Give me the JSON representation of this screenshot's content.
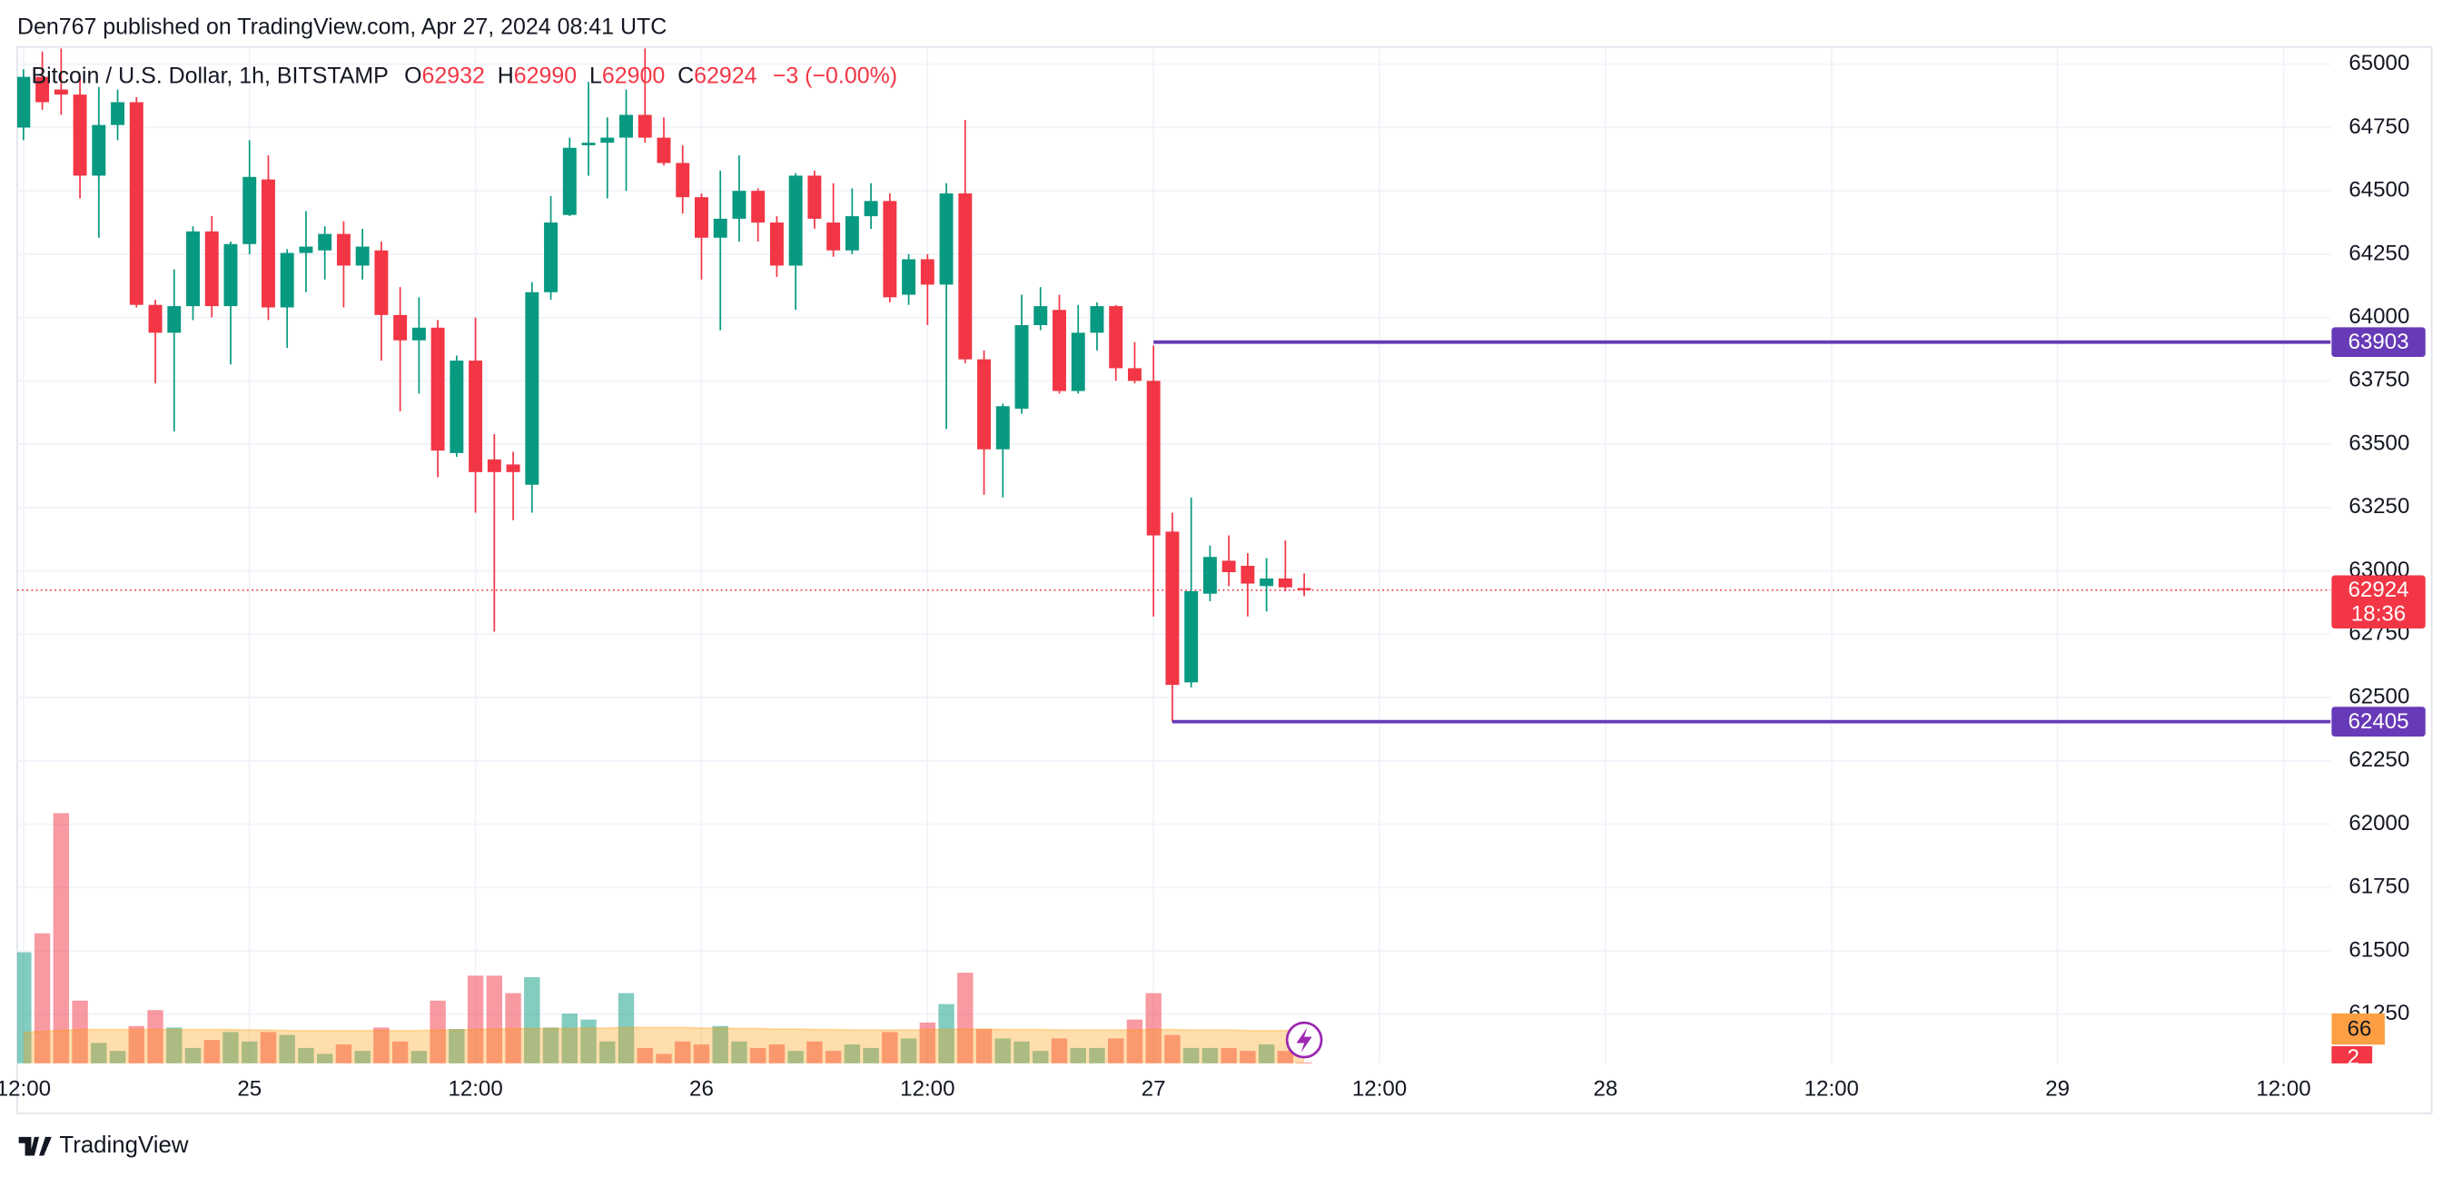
{
  "header": "Den767 published on TradingView.com, Apr 27, 2024 08:41 UTC",
  "footer_brand": "TradingView",
  "chart_data": {
    "type": "candlestick",
    "title": "Bitcoin / U.S. Dollar, 1h, BITSTAMP",
    "ohlc_labels": [
      "O",
      "H",
      "L",
      "C"
    ],
    "change_label": "−3 (−0.00%)",
    "countdown": "18:36",
    "x": [
      "2024-04-24 12:00",
      "2024-04-24 13:00",
      "2024-04-24 14:00",
      "2024-04-24 15:00",
      "2024-04-24 16:00",
      "2024-04-24 17:00",
      "2024-04-24 18:00",
      "2024-04-24 19:00",
      "2024-04-24 20:00",
      "2024-04-24 21:00",
      "2024-04-24 22:00",
      "2024-04-24 23:00",
      "2024-04-25 00:00",
      "2024-04-25 01:00",
      "2024-04-25 02:00",
      "2024-04-25 03:00",
      "2024-04-25 04:00",
      "2024-04-25 05:00",
      "2024-04-25 06:00",
      "2024-04-25 07:00",
      "2024-04-25 08:00",
      "2024-04-25 09:00",
      "2024-04-25 10:00",
      "2024-04-25 11:00",
      "2024-04-25 12:00",
      "2024-04-25 13:00",
      "2024-04-25 14:00",
      "2024-04-25 15:00",
      "2024-04-25 16:00",
      "2024-04-25 17:00",
      "2024-04-25 18:00",
      "2024-04-25 19:00",
      "2024-04-25 20:00",
      "2024-04-25 21:00",
      "2024-04-25 22:00",
      "2024-04-25 23:00",
      "2024-04-26 00:00",
      "2024-04-26 01:00",
      "2024-04-26 02:00",
      "2024-04-26 03:00",
      "2024-04-26 04:00",
      "2024-04-26 05:00",
      "2024-04-26 06:00",
      "2024-04-26 07:00",
      "2024-04-26 08:00",
      "2024-04-26 09:00",
      "2024-04-26 10:00",
      "2024-04-26 11:00",
      "2024-04-26 12:00",
      "2024-04-26 13:00",
      "2024-04-26 14:00",
      "2024-04-26 15:00",
      "2024-04-26 16:00",
      "2024-04-26 17:00",
      "2024-04-26 18:00",
      "2024-04-26 19:00",
      "2024-04-26 20:00",
      "2024-04-26 21:00",
      "2024-04-26 22:00",
      "2024-04-26 23:00",
      "2024-04-27 00:00",
      "2024-04-27 01:00",
      "2024-04-27 02:00",
      "2024-04-27 03:00",
      "2024-04-27 04:00",
      "2024-04-27 05:00",
      "2024-04-27 06:00",
      "2024-04-27 07:00",
      "2024-04-27 08:00"
    ],
    "open": [
      64750,
      64950,
      64900,
      64880,
      64560,
      64760,
      64850,
      64050,
      63940,
      64045,
      64340,
      64045,
      64290,
      64545,
      64040,
      64255,
      64265,
      64330,
      64205,
      64265,
      64010,
      63910,
      63960,
      63465,
      63830,
      63440,
      63420,
      63340,
      64100,
      64405,
      64680,
      64690,
      64710,
      64800,
      64710,
      64610,
      64475,
      64315,
      64390,
      64500,
      64375,
      64205,
      64560,
      64375,
      64265,
      64400,
      64460,
      64090,
      64230,
      64130,
      64490,
      63835,
      63480,
      63640,
      63970,
      64030,
      63710,
      63940,
      64045,
      63800,
      63750,
      63155,
      62560,
      62910,
      63040,
      63020,
      62940,
      62970,
      62932
    ],
    "high": [
      64980,
      65050,
      65100,
      64950,
      64910,
      64900,
      64870,
      64070,
      64190,
      64360,
      64400,
      64300,
      64700,
      64640,
      64270,
      64420,
      64360,
      64380,
      64350,
      64300,
      64120,
      64080,
      63990,
      63850,
      64000,
      63540,
      63470,
      64140,
      64480,
      64710,
      64930,
      64790,
      64900,
      65100,
      64790,
      64680,
      64490,
      64580,
      64640,
      64510,
      64400,
      64570,
      64580,
      64530,
      64510,
      64530,
      64490,
      64250,
      64250,
      64530,
      64780,
      63870,
      63660,
      64090,
      64120,
      64090,
      64050,
      64060,
      64050,
      63903,
      63890,
      63230,
      63290,
      63100,
      63140,
      63070,
      63050,
      63120,
      62990
    ],
    "low": [
      64700,
      64820,
      64800,
      64470,
      64315,
      64700,
      64040,
      63740,
      63550,
      63990,
      64000,
      63815,
      64250,
      63990,
      63880,
      64100,
      64150,
      64040,
      64150,
      63830,
      63630,
      63700,
      63370,
      63450,
      63230,
      62760,
      63200,
      63230,
      64070,
      64400,
      64560,
      64470,
      64500,
      64690,
      64600,
      64410,
      64150,
      63950,
      64300,
      64300,
      64160,
      64030,
      64350,
      64240,
      64250,
      64350,
      64060,
      64050,
      63970,
      63560,
      63820,
      63300,
      63290,
      63620,
      63950,
      63700,
      63700,
      63870,
      63750,
      63740,
      62820,
      62405,
      62540,
      62880,
      62940,
      62820,
      62840,
      62920,
      62900
    ],
    "close": [
      64950,
      64850,
      64880,
      64560,
      64760,
      64850,
      64050,
      63940,
      64045,
      64340,
      64045,
      64290,
      64555,
      64040,
      64255,
      64280,
      64330,
      64205,
      64280,
      64010,
      63910,
      63960,
      63475,
      63830,
      63390,
      63390,
      63390,
      64100,
      64375,
      64670,
      64690,
      64710,
      64800,
      64710,
      64610,
      64475,
      64315,
      64390,
      64500,
      64375,
      64205,
      64560,
      64390,
      64265,
      64400,
      64460,
      64080,
      64230,
      64130,
      64490,
      63835,
      63480,
      63650,
      63970,
      64045,
      63710,
      63940,
      64045,
      63800,
      63750,
      63140,
      62550,
      62920,
      63055,
      62995,
      62950,
      62970,
      62935,
      62924
    ],
    "volume": [
      223,
      261,
      502,
      126,
      41,
      25,
      75,
      107,
      72,
      31,
      47,
      63,
      44,
      63,
      57,
      31,
      19,
      38,
      25,
      72,
      44,
      25,
      126,
      69,
      176,
      176,
      141,
      173,
      72,
      100,
      88,
      44,
      141,
      31,
      19,
      44,
      38,
      75,
      44,
      31,
      38,
      25,
      44,
      25,
      38,
      31,
      63,
      50,
      82,
      119,
      182,
      69,
      50,
      44,
      25,
      50,
      31,
      31,
      50,
      88,
      141,
      57,
      31,
      31,
      31,
      25,
      38,
      25,
      2
    ],
    "volume_ma": [
      62,
      64,
      66,
      68,
      68,
      68,
      68,
      68,
      68,
      68,
      68,
      68,
      67,
      67,
      66,
      66,
      66,
      66,
      66,
      66,
      66,
      66,
      67,
      67,
      68,
      69,
      70,
      70,
      70,
      70,
      71,
      71,
      72,
      72,
      72,
      72,
      71,
      71,
      70,
      70,
      69,
      69,
      68,
      68,
      67,
      67,
      67,
      67,
      68,
      68,
      69,
      69,
      68,
      68,
      68,
      67,
      67,
      67,
      67,
      67,
      68,
      68,
      67,
      67,
      67,
      66,
      66,
      66,
      66
    ],
    "colors": {
      "up": "#089981",
      "down": "#f23645",
      "volume_up": "rgba(8,153,129,0.5)",
      "volume_down": "rgba(242,54,69,0.5)",
      "volume_ma": "rgba(255,152,0,0.32)"
    },
    "xlim": [
      "2024-04-24 11:40",
      "2024-04-29 14:30"
    ],
    "xticks": [
      {
        "value": "2024-04-24 12:00",
        "label": "12:00"
      },
      {
        "value": "2024-04-25 00:00",
        "label": "25"
      },
      {
        "value": "2024-04-25 12:00",
        "label": "12:00"
      },
      {
        "value": "2024-04-26 00:00",
        "label": "26"
      },
      {
        "value": "2024-04-26 12:00",
        "label": "12:00"
      },
      {
        "value": "2024-04-27 00:00",
        "label": "27"
      },
      {
        "value": "2024-04-27 12:00",
        "label": "12:00"
      },
      {
        "value": "2024-04-28 00:00",
        "label": "28"
      },
      {
        "value": "2024-04-28 12:00",
        "label": "12:00"
      },
      {
        "value": "2024-04-29 00:00",
        "label": "29"
      },
      {
        "value": "2024-04-29 12:00",
        "label": "12:00"
      }
    ],
    "ylim": [
      61056,
      65062
    ],
    "yticks": [
      61250,
      61500,
      61750,
      62000,
      62250,
      62500,
      62750,
      63000,
      63250,
      63500,
      63750,
      64000,
      64250,
      64500,
      64750,
      65000
    ],
    "grid": true,
    "levels": [
      {
        "value": 63903,
        "start": "2024-04-27 00:00",
        "color": "#673ab7"
      },
      {
        "value": 62405,
        "start": "2024-04-27 01:00",
        "color": "#673ab7"
      }
    ]
  }
}
